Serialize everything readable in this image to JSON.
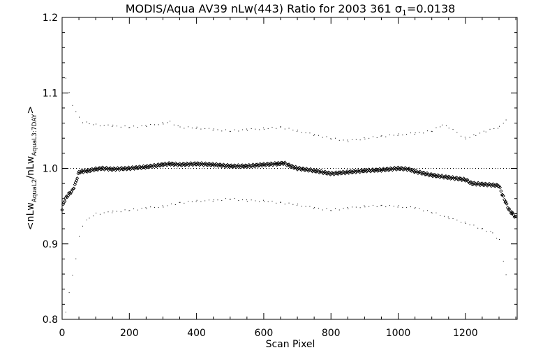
{
  "chart_data": {
    "type": "scatter",
    "title": "MODIS/Aqua AV39 nLw(443) Ratio for 2003 361 σ1=0.0138",
    "title_parts": {
      "main": "MODIS/Aqua AV39 nLw(443) Ratio for 2003 361 σ",
      "sub": "1",
      "tail": "=0.0138"
    },
    "xlabel": "Scan Pixel",
    "ylabel_parts": {
      "open": "<nLw",
      "sub1": "AquaL2",
      "mid": "/nLw",
      "sub2": "AquaL3:7DAY",
      "close": ">"
    },
    "xlim": [
      0,
      1354
    ],
    "ylim": [
      0.8,
      1.2
    ],
    "xticks": [
      0,
      200,
      400,
      600,
      800,
      1000,
      1200
    ],
    "yticks": [
      0.8,
      0.9,
      1.0,
      1.1,
      1.2
    ],
    "ytick_labels": [
      "0.8",
      "0.9",
      "1.0",
      "1.1",
      "1.2"
    ],
    "reference_line": 1.0,
    "grid": false,
    "series": [
      {
        "role": "mean_ratio",
        "marker": "diamond",
        "x": [
          0,
          5,
          10,
          15,
          20,
          25,
          30,
          35,
          40,
          45,
          50,
          60,
          80,
          100,
          120,
          150,
          200,
          250,
          300,
          320,
          350,
          400,
          450,
          500,
          550,
          600,
          640,
          660,
          680,
          700,
          750,
          800,
          850,
          900,
          950,
          1000,
          1030,
          1050,
          1100,
          1150,
          1200,
          1220,
          1250,
          1280,
          1300,
          1310,
          1320,
          1330,
          1340,
          1350
        ],
        "y": [
          0.945,
          0.955,
          0.96,
          0.963,
          0.966,
          0.968,
          0.97,
          0.975,
          0.98,
          0.988,
          0.995,
          0.996,
          0.997,
          0.999,
          1.0,
          0.999,
          1.0,
          1.002,
          1.005,
          1.006,
          1.005,
          1.006,
          1.005,
          1.003,
          1.003,
          1.005,
          1.006,
          1.007,
          1.003,
          1.0,
          0.997,
          0.993,
          0.995,
          0.997,
          0.998,
          1.0,
          0.999,
          0.996,
          0.991,
          0.988,
          0.985,
          0.98,
          0.979,
          0.978,
          0.977,
          0.965,
          0.955,
          0.945,
          0.94,
          0.935
        ]
      },
      {
        "role": "upper_envelope",
        "marker": "dot",
        "x": [
          10,
          20,
          30,
          40,
          50,
          60,
          80,
          100,
          150,
          200,
          250,
          300,
          320,
          350,
          400,
          450,
          500,
          550,
          600,
          650,
          700,
          750,
          800,
          850,
          900,
          950,
          1000,
          1050,
          1100,
          1130,
          1150,
          1200,
          1230,
          1260,
          1300,
          1320
        ],
        "y": [
          1.12,
          1.1,
          1.085,
          1.075,
          1.068,
          1.062,
          1.06,
          1.058,
          1.057,
          1.055,
          1.057,
          1.06,
          1.062,
          1.055,
          1.054,
          1.052,
          1.05,
          1.052,
          1.053,
          1.055,
          1.05,
          1.045,
          1.04,
          1.037,
          1.04,
          1.043,
          1.045,
          1.047,
          1.05,
          1.058,
          1.055,
          1.04,
          1.045,
          1.05,
          1.055,
          1.065
        ]
      },
      {
        "role": "lower_envelope",
        "marker": "dot",
        "x": [
          10,
          20,
          30,
          40,
          50,
          60,
          80,
          100,
          150,
          200,
          250,
          300,
          350,
          400,
          450,
          500,
          550,
          600,
          650,
          700,
          750,
          800,
          850,
          900,
          950,
          1000,
          1050,
          1100,
          1150,
          1200,
          1250,
          1280,
          1300,
          1320
        ],
        "y": [
          0.81,
          0.835,
          0.86,
          0.88,
          0.91,
          0.925,
          0.935,
          0.94,
          0.943,
          0.945,
          0.948,
          0.95,
          0.955,
          0.957,
          0.958,
          0.96,
          0.958,
          0.957,
          0.955,
          0.952,
          0.948,
          0.945,
          0.948,
          0.95,
          0.951,
          0.95,
          0.948,
          0.942,
          0.935,
          0.928,
          0.92,
          0.915,
          0.905,
          0.86
        ]
      }
    ]
  }
}
